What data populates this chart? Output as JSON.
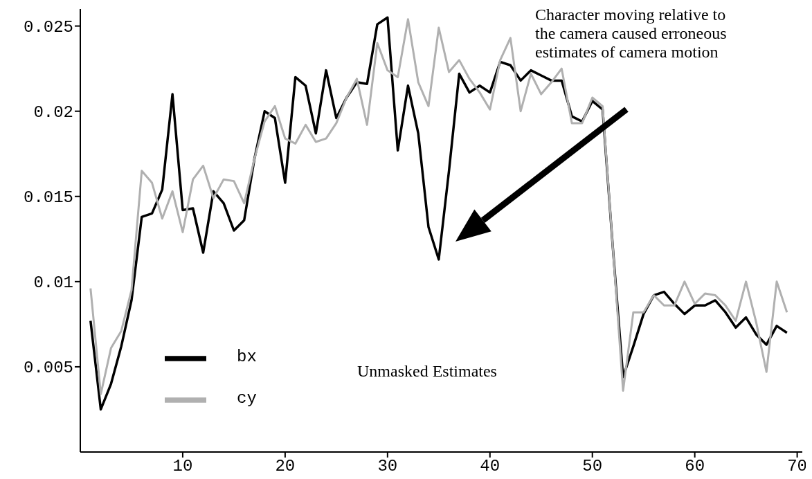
{
  "chart_data": {
    "type": "line",
    "x": [
      1,
      2,
      3,
      4,
      5,
      6,
      7,
      8,
      9,
      10,
      11,
      12,
      13,
      14,
      15,
      16,
      17,
      18,
      19,
      20,
      21,
      22,
      23,
      24,
      25,
      26,
      27,
      28,
      29,
      30,
      31,
      32,
      33,
      34,
      35,
      36,
      37,
      38,
      39,
      40,
      41,
      42,
      43,
      44,
      45,
      46,
      47,
      48,
      49,
      50,
      51,
      52,
      53,
      54,
      55,
      56,
      57,
      58,
      59,
      60,
      61,
      62,
      63,
      64,
      65,
      66,
      67,
      68,
      69
    ],
    "series": [
      {
        "name": "bx",
        "color": "#000000",
        "values": [
          0.0077,
          0.0025,
          0.004,
          0.0062,
          0.0089,
          0.0138,
          0.014,
          0.0154,
          0.021,
          0.0142,
          0.0143,
          0.0117,
          0.0153,
          0.0146,
          0.013,
          0.0136,
          0.0172,
          0.02,
          0.0196,
          0.0158,
          0.022,
          0.0215,
          0.0187,
          0.0224,
          0.0196,
          0.0208,
          0.0217,
          0.0216,
          0.0251,
          0.0255,
          0.0177,
          0.0215,
          0.0187,
          0.0132,
          0.0113,
          0.0165,
          0.0222,
          0.0211,
          0.0215,
          0.0211,
          0.0229,
          0.0227,
          0.0218,
          0.0224,
          0.0221,
          0.0218,
          0.0218,
          0.0197,
          0.0194,
          0.0206,
          0.0201,
          0.012,
          0.0044,
          0.0062,
          0.0081,
          0.0092,
          0.0094,
          0.0087,
          0.0081,
          0.0086,
          0.0086,
          0.0089,
          0.0082,
          0.0073,
          0.0079,
          0.0069,
          0.0063,
          0.0074,
          0.007
        ]
      },
      {
        "name": "cy",
        "color": "#b0b0b0",
        "values": [
          0.0096,
          0.0034,
          0.0061,
          0.0071,
          0.0095,
          0.0165,
          0.0158,
          0.0137,
          0.0153,
          0.0129,
          0.016,
          0.0168,
          0.0149,
          0.016,
          0.0159,
          0.0146,
          0.0172,
          0.0194,
          0.0203,
          0.0184,
          0.0181,
          0.0192,
          0.0182,
          0.0184,
          0.0193,
          0.0208,
          0.0219,
          0.0192,
          0.024,
          0.0224,
          0.022,
          0.0254,
          0.0217,
          0.0203,
          0.0249,
          0.0223,
          0.023,
          0.0219,
          0.0211,
          0.0201,
          0.023,
          0.0243,
          0.02,
          0.0222,
          0.021,
          0.0217,
          0.0225,
          0.0193,
          0.0193,
          0.0208,
          0.0203,
          0.012,
          0.0036,
          0.0082,
          0.0082,
          0.0092,
          0.0086,
          0.0086,
          0.01,
          0.0087,
          0.0093,
          0.0092,
          0.0086,
          0.0077,
          0.01,
          0.0076,
          0.0047,
          0.01,
          0.0082
        ]
      }
    ],
    "xlim": [
      0,
      70.5
    ],
    "xticks": [
      10,
      20,
      30,
      40,
      50,
      60,
      70
    ],
    "ylim": [
      0,
      0.026
    ],
    "yticks": [
      0.005,
      0.01,
      0.015,
      0.02,
      0.025
    ],
    "grid": false,
    "legend": "bottom left",
    "marker": "none",
    "line_style": "solid",
    "annotations": [
      "Character moving relative to the camera caused erroneous estimates of camera motion",
      "Unmasked Estimates"
    ]
  }
}
